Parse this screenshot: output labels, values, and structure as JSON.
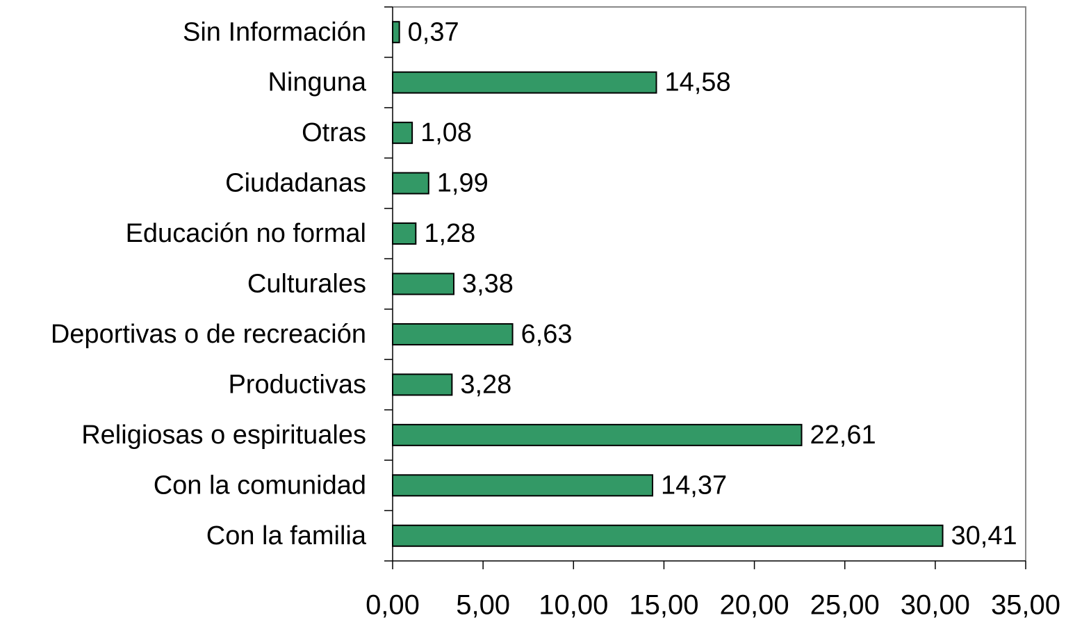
{
  "chart_data": {
    "type": "bar",
    "orientation": "horizontal",
    "categories": [
      "Sin Información",
      "Ninguna",
      "Otras",
      "Ciudadanas",
      "Educación no formal",
      "Culturales",
      "Deportivas o de recreación",
      "Productivas",
      "Religiosas o espirituales",
      "Con la comunidad",
      "Con la familia"
    ],
    "values": [
      0.37,
      14.58,
      1.08,
      1.99,
      1.28,
      3.38,
      6.63,
      3.28,
      22.61,
      14.37,
      30.41
    ],
    "value_labels": [
      "0,37",
      "14,58",
      "1,08",
      "1,99",
      "1,28",
      "3,38",
      "6,63",
      "3,28",
      "22,61",
      "14,37",
      "30,41"
    ],
    "color": "#339966",
    "xlim": [
      0,
      35
    ],
    "xticks": [
      {
        "value": 0,
        "label": "0,00"
      },
      {
        "value": 5,
        "label": "5,00"
      },
      {
        "value": 10,
        "label": "10,00"
      },
      {
        "value": 15,
        "label": "15,00"
      },
      {
        "value": 20,
        "label": "20,00"
      },
      {
        "value": 25,
        "label": "25,00"
      },
      {
        "value": 30,
        "label": "30,00"
      },
      {
        "value": 35,
        "label": "35,00"
      }
    ],
    "grid": false
  }
}
